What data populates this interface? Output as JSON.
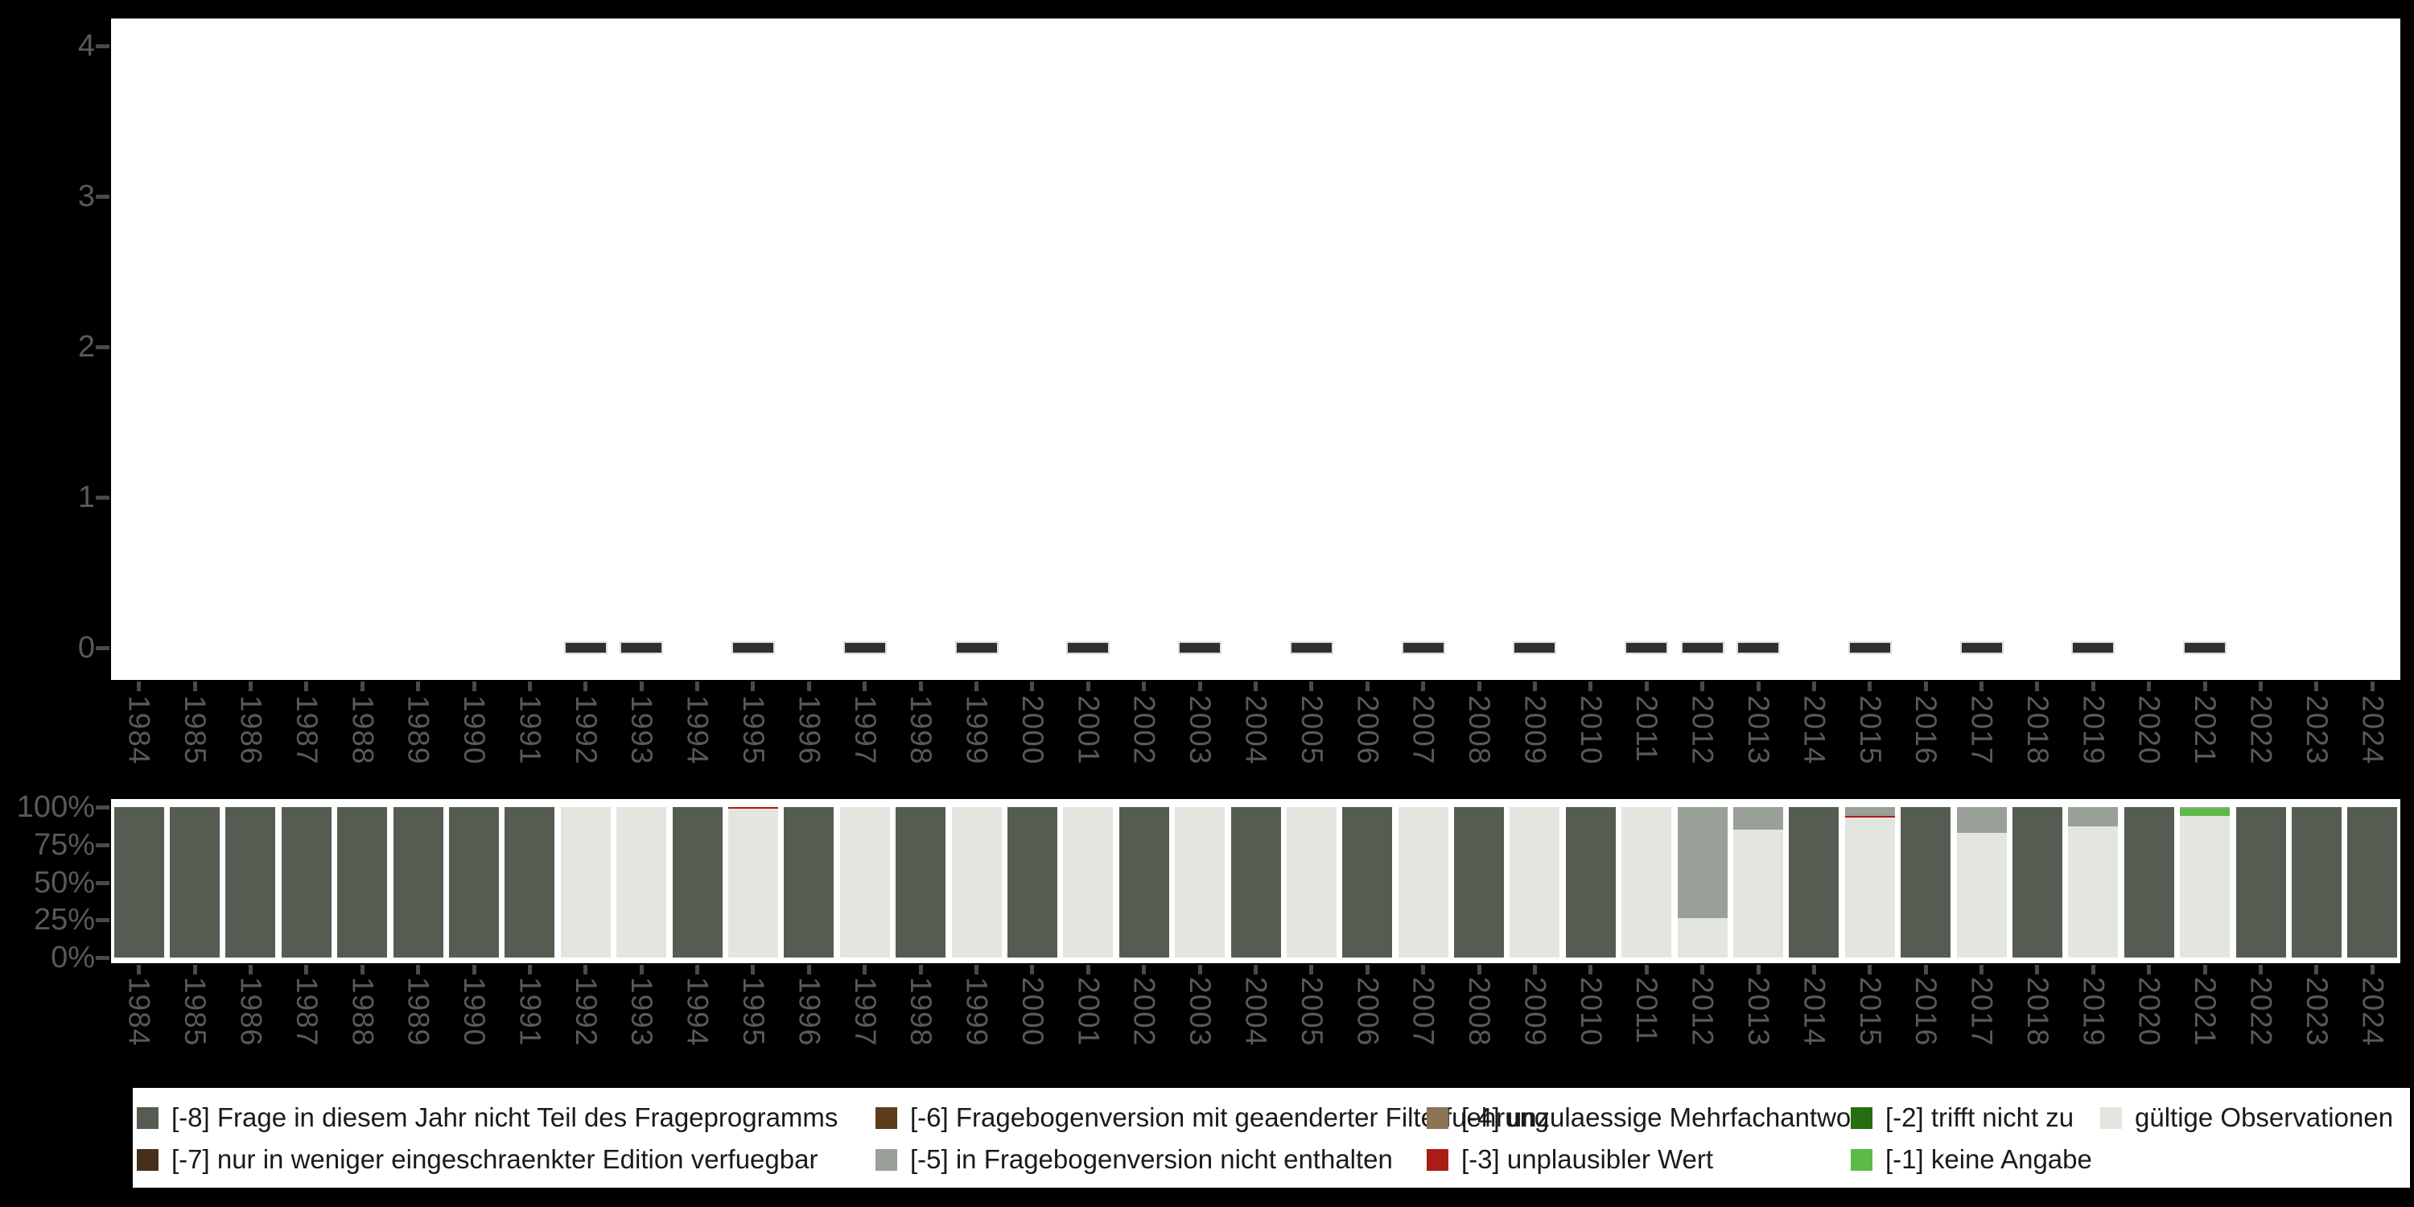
{
  "chart_data": [
    {
      "type": "scatter",
      "title": "",
      "xlabel": "",
      "ylabel": "",
      "categories": [
        1984,
        1985,
        1986,
        1987,
        1988,
        1989,
        1990,
        1991,
        1992,
        1993,
        1994,
        1995,
        1996,
        1997,
        1998,
        1999,
        2000,
        2001,
        2002,
        2003,
        2004,
        2005,
        2006,
        2007,
        2008,
        2009,
        2010,
        2011,
        2012,
        2013,
        2014,
        2015,
        2016,
        2017,
        2018,
        2019,
        2020,
        2021,
        2022,
        2023,
        2024
      ],
      "ylim": [
        0,
        4
      ],
      "yticks": [
        4,
        3,
        2,
        1,
        0
      ],
      "marker": "horizontal-dash",
      "points": [
        {
          "x": 1992,
          "y": 0
        },
        {
          "x": 1993,
          "y": 0
        },
        {
          "x": 1995,
          "y": 0
        },
        {
          "x": 1997,
          "y": 0
        },
        {
          "x": 1999,
          "y": 0
        },
        {
          "x": 2001,
          "y": 0
        },
        {
          "x": 2003,
          "y": 0
        },
        {
          "x": 2005,
          "y": 0
        },
        {
          "x": 2007,
          "y": 0
        },
        {
          "x": 2009,
          "y": 0
        },
        {
          "x": 2011,
          "y": 0
        },
        {
          "x": 2012,
          "y": 0
        },
        {
          "x": 2013,
          "y": 0
        },
        {
          "x": 2015,
          "y": 0
        },
        {
          "x": 2017,
          "y": 0
        },
        {
          "x": 2019,
          "y": 0
        },
        {
          "x": 2021,
          "y": 0
        }
      ]
    },
    {
      "type": "bar",
      "subtype": "percent-stacked",
      "title": "",
      "xlabel": "",
      "ylabel": "",
      "categories": [
        1984,
        1985,
        1986,
        1987,
        1988,
        1989,
        1990,
        1991,
        1992,
        1993,
        1994,
        1995,
        1996,
        1997,
        1998,
        1999,
        2000,
        2001,
        2002,
        2003,
        2004,
        2005,
        2006,
        2007,
        2008,
        2009,
        2010,
        2011,
        2012,
        2013,
        2014,
        2015,
        2016,
        2017,
        2018,
        2019,
        2020,
        2021,
        2022,
        2023,
        2024
      ],
      "ylim": [
        0,
        100
      ],
      "yticks": [
        "100%",
        "75%",
        "50%",
        "25%",
        "0%"
      ],
      "grid": false,
      "legend_position": "bottom",
      "stacks_top_to_bottom": [
        {
          "year": 1984,
          "segments": [
            [
              "na8",
              100
            ]
          ]
        },
        {
          "year": 1985,
          "segments": [
            [
              "na8",
              100
            ]
          ]
        },
        {
          "year": 1986,
          "segments": [
            [
              "na8",
              100
            ]
          ]
        },
        {
          "year": 1987,
          "segments": [
            [
              "na8",
              100
            ]
          ]
        },
        {
          "year": 1988,
          "segments": [
            [
              "na8",
              100
            ]
          ]
        },
        {
          "year": 1989,
          "segments": [
            [
              "na8",
              100
            ]
          ]
        },
        {
          "year": 1990,
          "segments": [
            [
              "na8",
              100
            ]
          ]
        },
        {
          "year": 1991,
          "segments": [
            [
              "na8",
              100
            ]
          ]
        },
        {
          "year": 1992,
          "segments": [
            [
              "valid",
              100
            ]
          ]
        },
        {
          "year": 1993,
          "segments": [
            [
              "valid",
              100
            ]
          ]
        },
        {
          "year": 1994,
          "segments": [
            [
              "na8",
              100
            ]
          ]
        },
        {
          "year": 1995,
          "segments": [
            [
              "na3",
              1.2
            ],
            [
              "valid",
              98.8
            ]
          ]
        },
        {
          "year": 1996,
          "segments": [
            [
              "na8",
              100
            ]
          ]
        },
        {
          "year": 1997,
          "segments": [
            [
              "valid",
              100
            ]
          ]
        },
        {
          "year": 1998,
          "segments": [
            [
              "na8",
              100
            ]
          ]
        },
        {
          "year": 1999,
          "segments": [
            [
              "valid",
              100
            ]
          ]
        },
        {
          "year": 2000,
          "segments": [
            [
              "na8",
              100
            ]
          ]
        },
        {
          "year": 2001,
          "segments": [
            [
              "valid",
              100
            ]
          ]
        },
        {
          "year": 2002,
          "segments": [
            [
              "na8",
              100
            ]
          ]
        },
        {
          "year": 2003,
          "segments": [
            [
              "valid",
              100
            ]
          ]
        },
        {
          "year": 2004,
          "segments": [
            [
              "na8",
              100
            ]
          ]
        },
        {
          "year": 2005,
          "segments": [
            [
              "valid",
              100
            ]
          ]
        },
        {
          "year": 2006,
          "segments": [
            [
              "na8",
              100
            ]
          ]
        },
        {
          "year": 2007,
          "segments": [
            [
              "valid",
              100
            ]
          ]
        },
        {
          "year": 2008,
          "segments": [
            [
              "na8",
              100
            ]
          ]
        },
        {
          "year": 2009,
          "segments": [
            [
              "valid",
              100
            ]
          ]
        },
        {
          "year": 2010,
          "segments": [
            [
              "na8",
              100
            ]
          ]
        },
        {
          "year": 2011,
          "segments": [
            [
              "valid",
              100
            ]
          ]
        },
        {
          "year": 2012,
          "segments": [
            [
              "na5",
              74
            ],
            [
              "valid",
              26
            ]
          ]
        },
        {
          "year": 2013,
          "segments": [
            [
              "na5",
              15
            ],
            [
              "valid",
              85
            ]
          ]
        },
        {
          "year": 2014,
          "segments": [
            [
              "na8",
              100
            ]
          ]
        },
        {
          "year": 2015,
          "segments": [
            [
              "na5",
              6
            ],
            [
              "na3",
              1
            ],
            [
              "valid",
              93
            ]
          ]
        },
        {
          "year": 2016,
          "segments": [
            [
              "na8",
              100
            ]
          ]
        },
        {
          "year": 2017,
          "segments": [
            [
              "na5",
              17
            ],
            [
              "valid",
              83
            ]
          ]
        },
        {
          "year": 2018,
          "segments": [
            [
              "na8",
              100
            ]
          ]
        },
        {
          "year": 2019,
          "segments": [
            [
              "na5",
              13
            ],
            [
              "valid",
              87
            ]
          ]
        },
        {
          "year": 2020,
          "segments": [
            [
              "na8",
              100
            ]
          ]
        },
        {
          "year": 2021,
          "segments": [
            [
              "na5",
              1
            ],
            [
              "na1",
              5
            ],
            [
              "valid",
              94
            ]
          ]
        },
        {
          "year": 2022,
          "segments": [
            [
              "na8",
              100
            ]
          ]
        },
        {
          "year": 2023,
          "segments": [
            [
              "na8",
              100
            ]
          ]
        },
        {
          "year": 2024,
          "segments": [
            [
              "na8",
              100
            ]
          ]
        }
      ]
    }
  ],
  "colors": {
    "na8": "#555D53",
    "na7": "#47301B",
    "na6": "#5E3C19",
    "na5": "#99A097",
    "na4": "#8B7355",
    "na3": "#AC1B15",
    "na2": "#276D11",
    "na1": "#5BBB46",
    "valid": "#E2E6DF",
    "background": "#000000",
    "plot_background": "#FFFFFF",
    "axis_text": "#58595B",
    "tick_mark": "#4A4A4A",
    "dash_marker": "#2F2F2F"
  },
  "legend": {
    "items": [
      {
        "key": "na8",
        "label": "[-8] Frage in diesem Jahr nicht Teil des Frageprogramms",
        "col": 0,
        "row": 0
      },
      {
        "key": "na7",
        "label": "[-7] nur in weniger eingeschraenkter Edition verfuegbar",
        "col": 0,
        "row": 1
      },
      {
        "key": "na6",
        "label": "[-6] Fragebogenversion mit geaenderter Filterfuehrung",
        "col": 1,
        "row": 0
      },
      {
        "key": "na5",
        "label": "[-5] in Fragebogenversion nicht enthalten",
        "col": 1,
        "row": 1
      },
      {
        "key": "na4",
        "label": "[-4] unzulaessige Mehrfachantwort",
        "col": 2,
        "row": 0
      },
      {
        "key": "na3",
        "label": "[-3] unplausibler Wert",
        "col": 2,
        "row": 1
      },
      {
        "key": "na2",
        "label": "[-2] trifft nicht zu",
        "col": 3,
        "row": 0
      },
      {
        "key": "na1",
        "label": "[-1] keine Angabe",
        "col": 3,
        "row": 1
      },
      {
        "key": "valid",
        "label": "gültige Observationen",
        "col": 4,
        "row": 0
      }
    ]
  }
}
